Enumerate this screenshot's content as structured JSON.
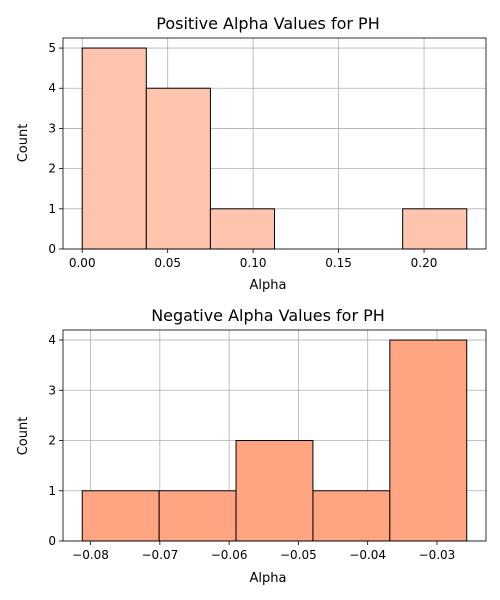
{
  "chart_data": [
    {
      "type": "bar",
      "title": "Positive Alpha Values for PH",
      "xlabel": "Alpha",
      "ylabel": "Count",
      "bin_edges": [
        0.0,
        0.0375,
        0.075,
        0.1125,
        0.15,
        0.1875,
        0.225
      ],
      "values": [
        5,
        4,
        1,
        0,
        0,
        1
      ],
      "xlim": [
        -0.01125,
        0.23625
      ],
      "ylim": [
        0,
        5.25
      ],
      "xticks": [
        0.0,
        0.05,
        0.1,
        0.15,
        0.2
      ],
      "xtick_labels": [
        "0.00",
        "0.05",
        "0.10",
        "0.15",
        "0.20"
      ],
      "yticks": [
        0,
        1,
        2,
        3,
        4,
        5
      ],
      "ytick_labels": [
        "0",
        "1",
        "2",
        "3",
        "4",
        "5"
      ],
      "color": "#FFC4AE",
      "grid": true
    },
    {
      "type": "bar",
      "title": "Negative Alpha Values for PH",
      "xlabel": "Alpha",
      "ylabel": "Count",
      "bin_edges": [
        -0.0812,
        -0.0701,
        -0.059,
        -0.0479,
        -0.0368,
        -0.0257
      ],
      "values": [
        1,
        1,
        2,
        1,
        4
      ],
      "xlim": [
        -0.08398,
        -0.02292
      ],
      "ylim": [
        0,
        4.2
      ],
      "xticks": [
        -0.08,
        -0.07,
        -0.06,
        -0.05,
        -0.04,
        -0.03
      ],
      "xtick_labels": [
        "−0.08",
        "−0.07",
        "−0.06",
        "−0.05",
        "−0.04",
        "−0.03"
      ],
      "yticks": [
        0,
        1,
        2,
        3,
        4
      ],
      "ytick_labels": [
        "0",
        "1",
        "2",
        "3",
        "4"
      ],
      "color": "#FFA582",
      "grid": true
    }
  ]
}
